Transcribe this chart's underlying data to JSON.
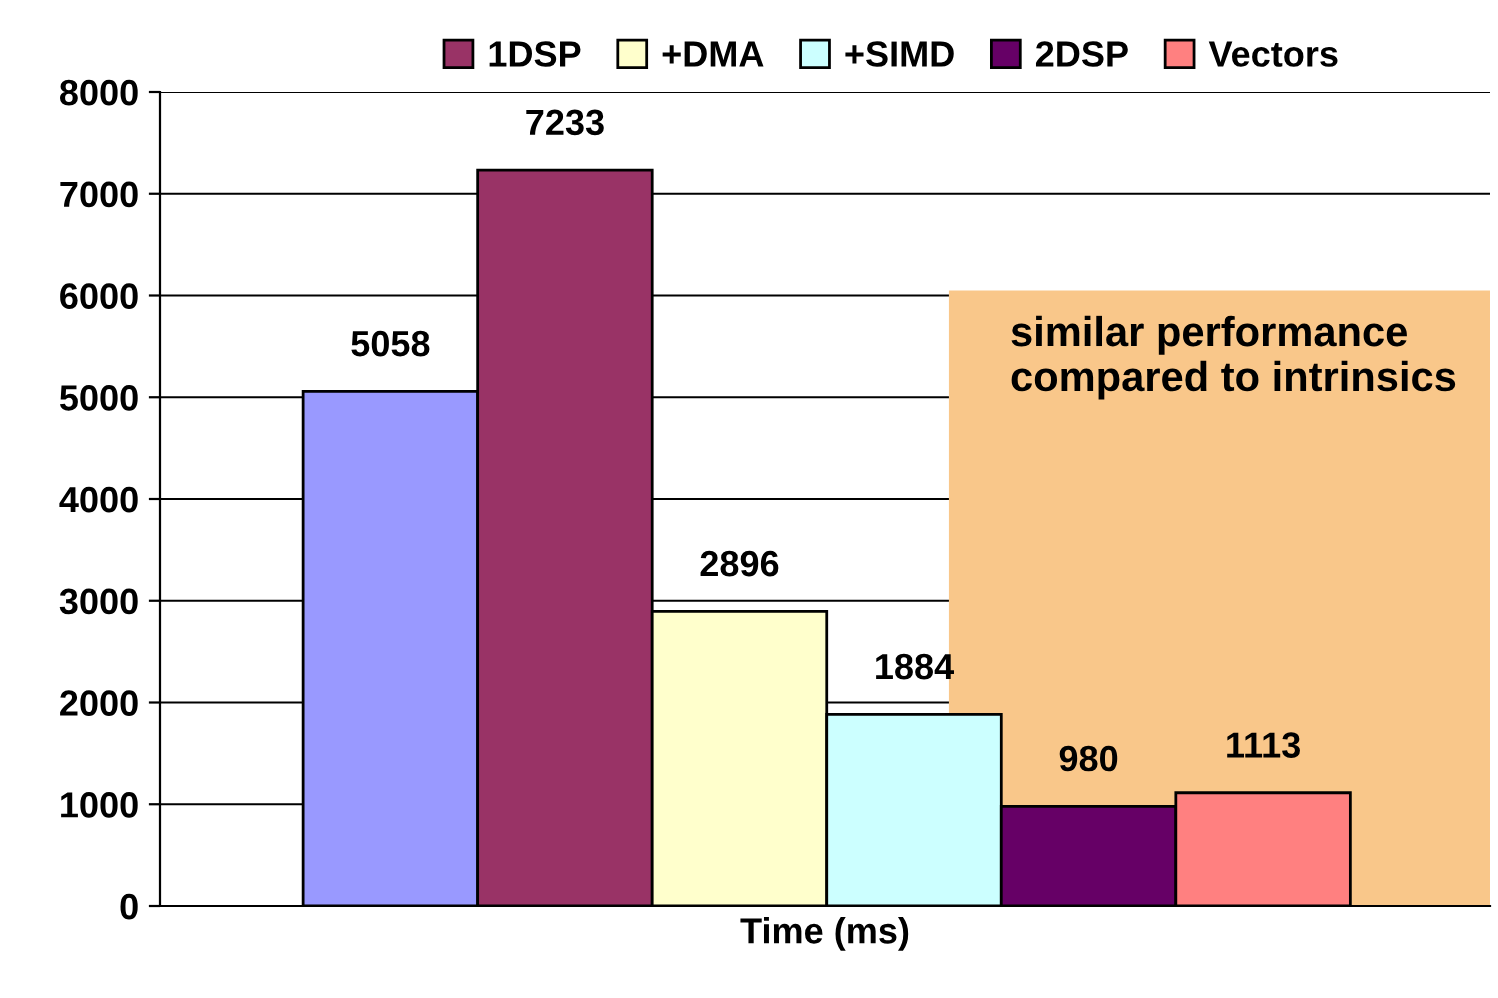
{
  "chart_data": {
    "type": "bar",
    "xlabel": "Time (ms)",
    "categories": [
      null
    ],
    "series": [
      {
        "color": "#9999ff",
        "values": [
          5058
        ]
      },
      {
        "name": "1DSP",
        "color": "#993366",
        "values": [
          7233
        ]
      },
      {
        "name": "+DMA",
        "color": "#ffffcc",
        "values": [
          2896
        ]
      },
      {
        "name": "+SIMD",
        "color": "#ccffff",
        "values": [
          1884
        ]
      },
      {
        "name": "2DSP",
        "color": "#660066",
        "values": [
          980
        ]
      },
      {
        "name": "Vectors",
        "color": "#ff8080",
        "values": [
          1113
        ]
      }
    ],
    "ylim": [
      0,
      8000
    ],
    "yticks": [
      0,
      1000,
      2000,
      3000,
      4000,
      5000,
      6000,
      7000,
      8000
    ],
    "grid": "y",
    "legend": "top",
    "data_labels": true,
    "bands": [
      {
        "axis": "y",
        "from": 0,
        "to": 6050,
        "label": "similar performance compared to intrinsics",
        "color": "#f9c78a"
      }
    ]
  }
}
